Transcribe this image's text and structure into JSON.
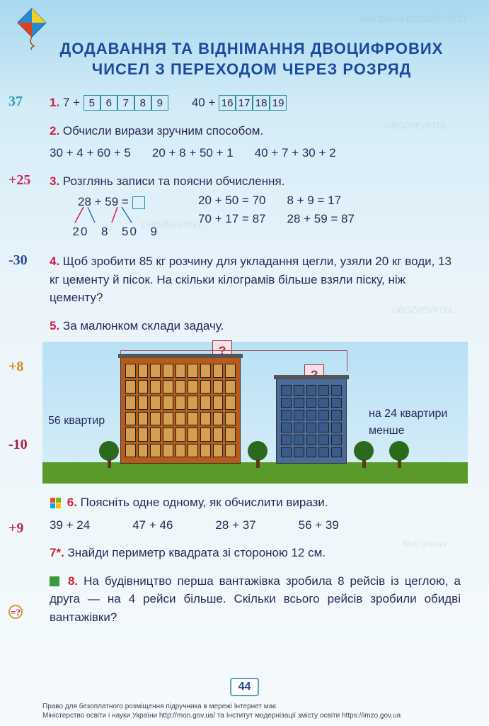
{
  "title": "ДОДАВАННЯ ТА ВІДНІМАННЯ ДВОЦИФРОВИХ ЧИСЕЛ З ПЕРЕХОДОМ ЧЕРЕЗ РОЗРЯД",
  "page_number": "44",
  "margin_notes": {
    "m1": "37",
    "m2": "+25",
    "m3": "-30",
    "m4": "+8",
    "m5": "-10",
    "m6": "+9",
    "m7": "=?"
  },
  "margin_colors": {
    "m1": "#2aa0b0",
    "m2": "#d02060",
    "m3": "#2a4aa0",
    "m4": "#d08a1a",
    "m5": "#a02040",
    "m6": "#c02060"
  },
  "task1": {
    "num": "1.",
    "left_lead": "7 +",
    "left_cells": [
      "5",
      "6",
      "7",
      "8",
      "9"
    ],
    "right_lead": "40 +",
    "right_cells": [
      "16",
      "17",
      "18",
      "19"
    ]
  },
  "task2": {
    "num": "2.",
    "text": "Обчисли вирази зручним способом.",
    "ex": [
      "30 + 4 + 60 + 5",
      "20 + 8 + 50 + 1",
      "40 + 7 + 30 + 2"
    ]
  },
  "task3": {
    "num": "3.",
    "text": "Розглянь записи та поясни обчислення.",
    "main": "28 + 59 =",
    "parts": [
      "20",
      "8",
      "50",
      "9"
    ],
    "col2": [
      "20 + 50 = 70",
      "70 + 17 = 87"
    ],
    "col3": [
      "8 + 9 = 17",
      "28 + 59 = 87"
    ]
  },
  "task4": {
    "num": "4.",
    "text": "Щоб зробити 85 кг розчину для укладання цегли, узяли 20 кг води, 13 кг цементу й пісок. На скільки кілограмів більше взяли піску, ніж цементу?"
  },
  "task5": {
    "num": "5.",
    "text": "За малюнком склади задачу.",
    "left_label": "56 квартир",
    "right_label": "на 24 квартири менше",
    "q": "?",
    "colors": {
      "b1": "#b85a1a",
      "b2": "#4a6a9a",
      "grass": "#5a9a2a"
    }
  },
  "task6": {
    "num": "6.",
    "text": "Поясніть одне одному, як обчислити вирази.",
    "ex": [
      "39 + 24",
      "47 + 46",
      "28 + 37",
      "56 + 39"
    ],
    "ms_colors": [
      "#f25022",
      "#7fba00",
      "#00a4ef",
      "#ffb900"
    ]
  },
  "task7": {
    "num": "7*.",
    "text": "Знайди периметр квадрата зі стороною 12 см."
  },
  "task8": {
    "num": "8.",
    "text": "На будівництво перша вантажівка зробила 8 рейсів із цеглою, а друга — на 4 рейси більше. Скільки всього рейсів зробили обидві вантажівки?"
  },
  "footer": {
    "l1": "Право для безоплатного розміщення підручника в мережі Інтернет має",
    "l2": "Міністерство освіти і науки України http://mon.gov.ua/ та Інститут модернізації змісту освіти https://imzo.gov.ua"
  },
  "watermarks": [
    "Моя Школа",
    "OBOZREVATEL"
  ]
}
